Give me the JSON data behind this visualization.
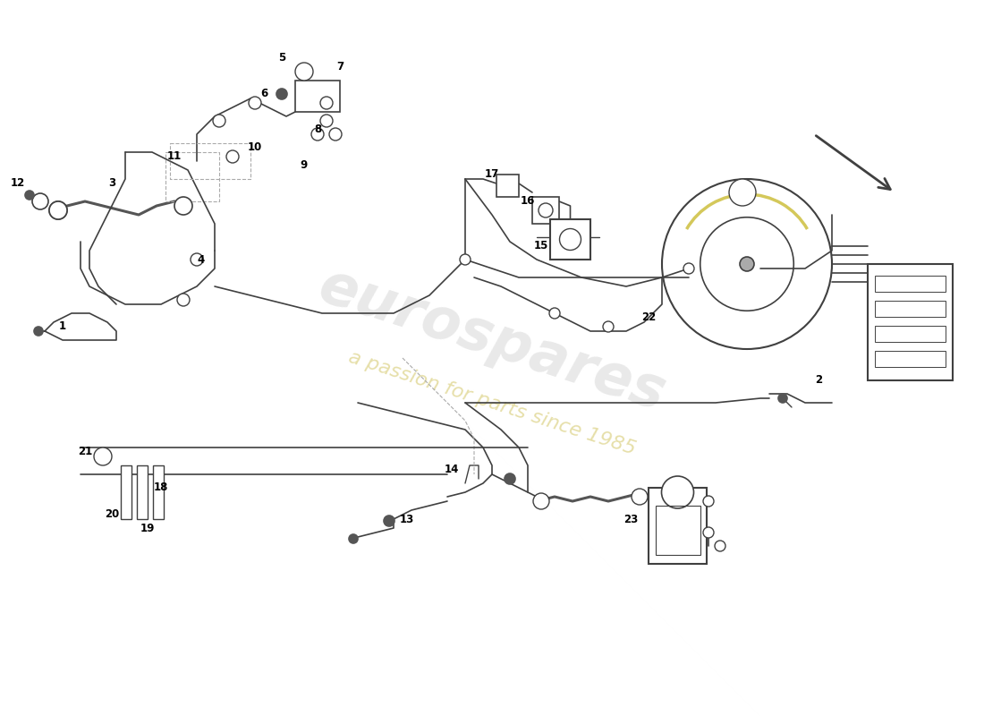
{
  "bg_color": "#ffffff",
  "line_color": "#404040",
  "label_color": "#000000",
  "dashed_color": "#aaaaaa",
  "watermark1": "eurospares",
  "watermark2": "a passion for parts since 1985",
  "figsize": [
    11.0,
    8.0
  ],
  "dpi": 100
}
